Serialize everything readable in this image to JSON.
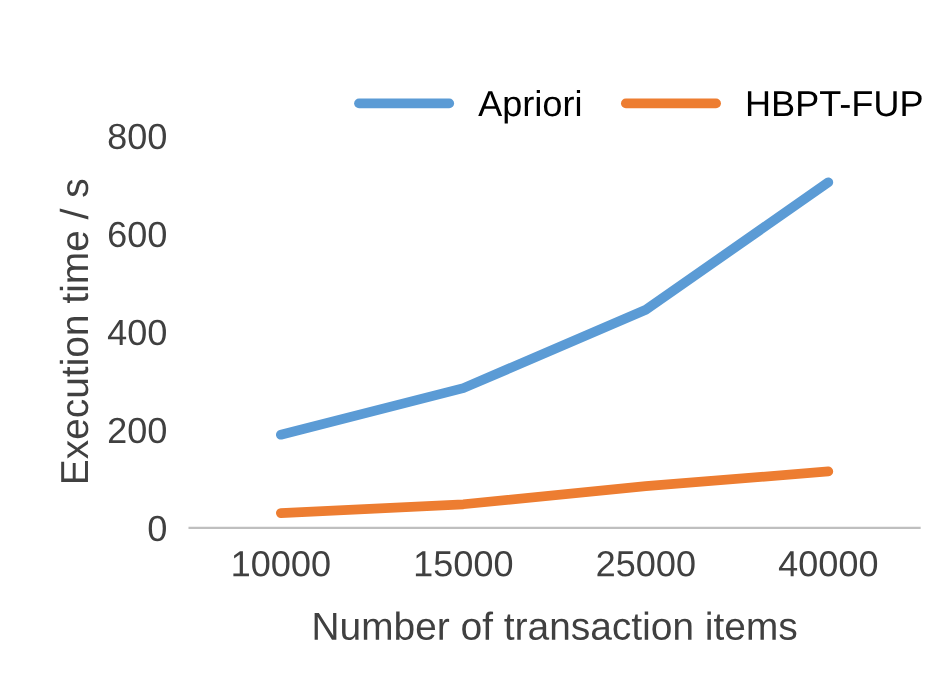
{
  "chart_data": {
    "type": "line",
    "xlabel": "Number of transaction items",
    "ylabel": "Execution time / s",
    "categories": [
      "10000",
      "15000",
      "25000",
      "40000"
    ],
    "series": [
      {
        "name": "Apriori",
        "color": "#5b9bd5",
        "values": [
          190,
          285,
          445,
          705
        ]
      },
      {
        "name": "HBPT-FUP",
        "color": "#ed7d31",
        "values": [
          30,
          48,
          85,
          115
        ]
      }
    ],
    "ylim": [
      0,
      800
    ],
    "yticks": [
      0,
      200,
      400,
      600,
      800
    ],
    "grid": false,
    "legend": "top right",
    "marker": "none",
    "line_style": "solid"
  }
}
